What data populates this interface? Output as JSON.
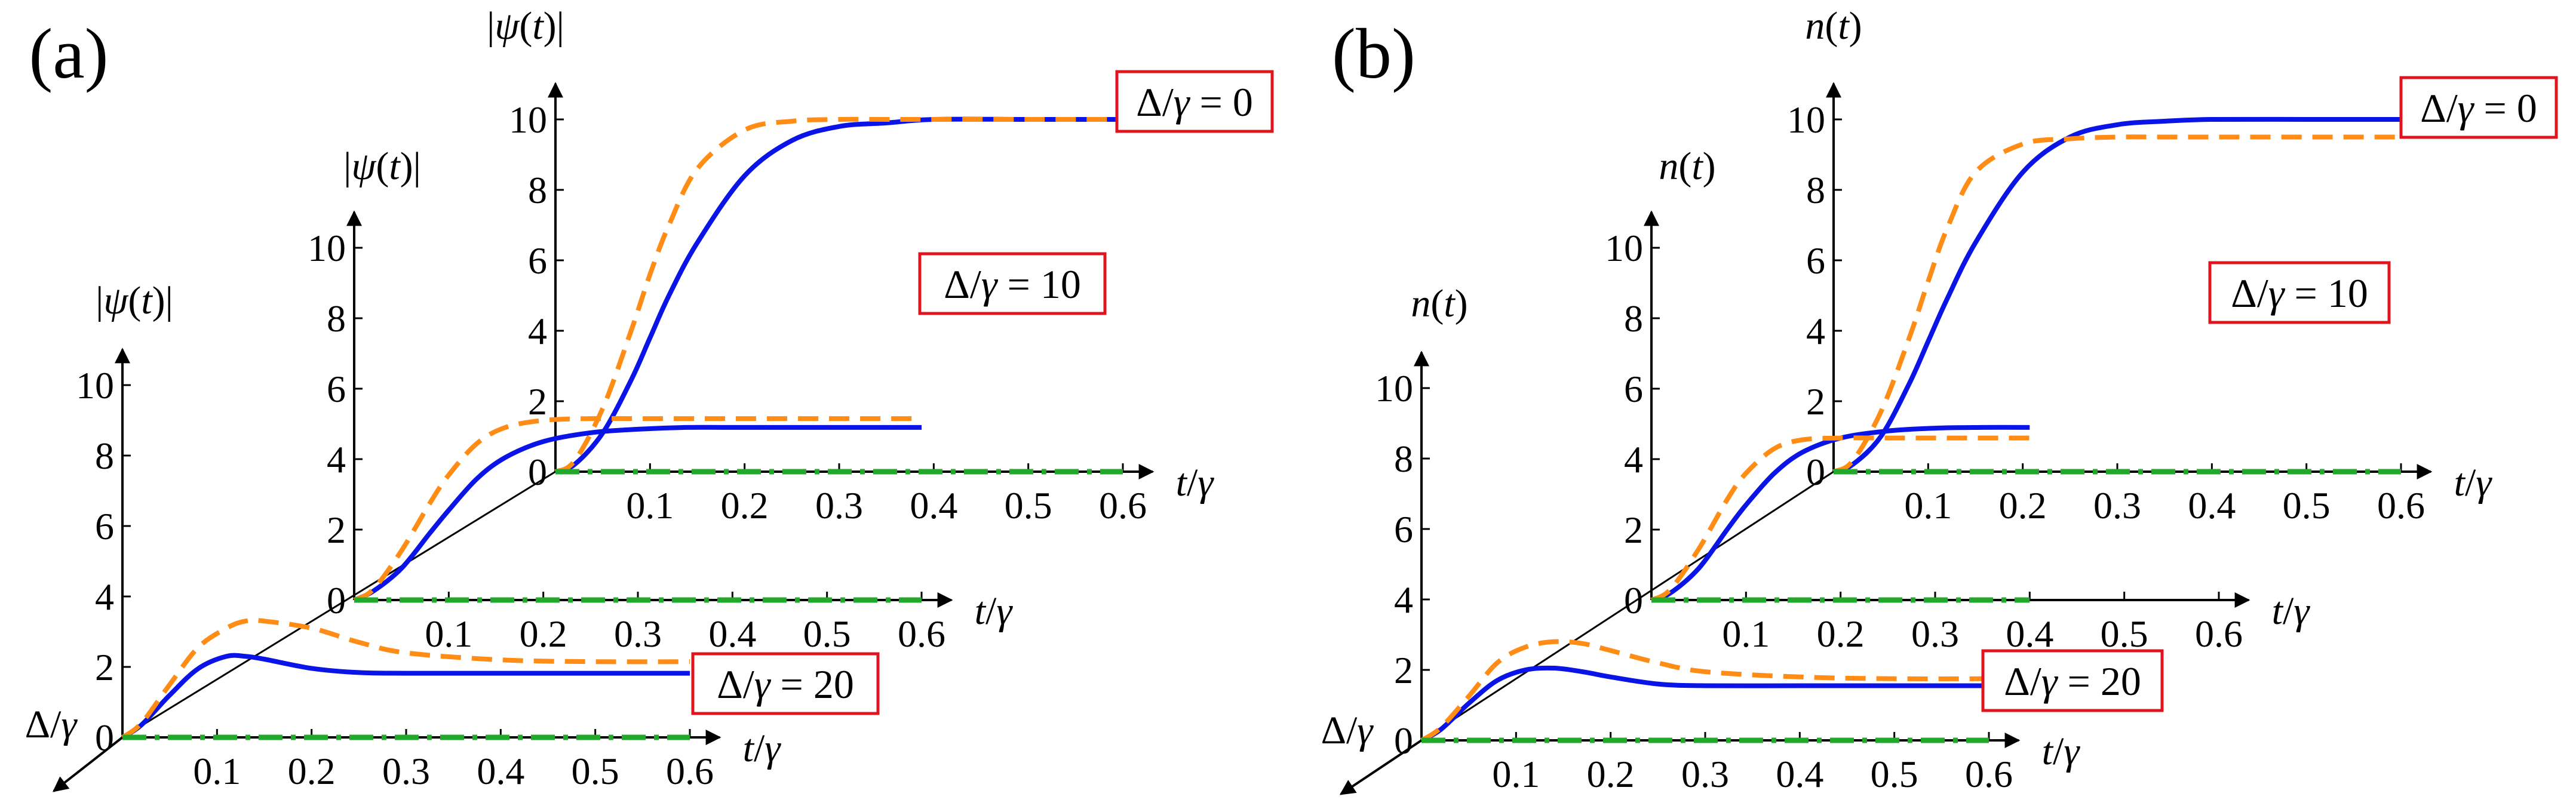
{
  "panels_text": [
    "(a)",
    "(b)"
  ],
  "ylabels": {
    "a": "|ψ(t)|",
    "b": "n(t)"
  },
  "xlabel": "t/γ",
  "depth_label": "Δ/γ",
  "colors": {
    "solid": "#0a14e6",
    "dashed": "#ff8c14",
    "dashdot": "#22a82a",
    "box": "#e0141e",
    "axis": "#000000"
  },
  "chart_data": [
    {
      "panel": "(a)",
      "type": "line",
      "title": "",
      "xlabel": "t/γ",
      "ylabel": "|ψ(t)|",
      "zlabel": "Δ/γ",
      "xlim": [
        0,
        0.6
      ],
      "ylim": [
        0,
        10
      ],
      "xticks": [
        "0.1",
        "0.2",
        "0.3",
        "0.4",
        "0.5",
        "0.6"
      ],
      "yticks": [
        "0",
        "2",
        "4",
        "6",
        "8",
        "10"
      ],
      "subplots": [
        {
          "label": "Δ/γ = 20",
          "x": [
            0,
            0.02,
            0.05,
            0.08,
            0.11,
            0.13,
            0.15,
            0.2,
            0.25,
            0.3,
            0.4,
            0.5,
            0.6
          ],
          "series": [
            {
              "name": "solid",
              "style": "solid",
              "values": [
                0,
                0.35,
                1.2,
                1.95,
                2.3,
                2.3,
                2.22,
                1.96,
                1.84,
                1.82,
                1.82,
                1.82,
                1.82
              ]
            },
            {
              "name": "dashed",
              "style": "dashed",
              "values": [
                0,
                0.4,
                1.5,
                2.55,
                3.1,
                3.3,
                3.3,
                3.1,
                2.7,
                2.4,
                2.2,
                2.15,
                2.15
              ]
            },
            {
              "name": "dash-dot",
              "style": "dashdot",
              "values": [
                0,
                0,
                0,
                0,
                0,
                0,
                0,
                0,
                0,
                0,
                0,
                0,
                0
              ]
            }
          ]
        },
        {
          "label": "Δ/γ = 10",
          "x": [
            0,
            0.02,
            0.05,
            0.08,
            0.1,
            0.13,
            0.16,
            0.2,
            0.25,
            0.3,
            0.35,
            0.4,
            0.5,
            0.6
          ],
          "series": [
            {
              "name": "solid",
              "style": "solid",
              "values": [
                0,
                0.25,
                0.9,
                1.9,
                2.55,
                3.45,
                4.05,
                4.5,
                4.75,
                4.85,
                4.9,
                4.9,
                4.9,
                4.9
              ]
            },
            {
              "name": "dashed",
              "style": "dashed",
              "values": [
                0,
                0.3,
                1.4,
                2.75,
                3.55,
                4.45,
                4.9,
                5.1,
                5.15,
                5.15,
                5.15,
                5.15,
                5.15,
                5.15
              ]
            },
            {
              "name": "dash-dot",
              "style": "dashdot",
              "values": [
                0,
                0,
                0,
                0,
                0,
                0,
                0,
                0,
                0,
                0,
                0,
                0,
                0,
                0
              ]
            }
          ]
        },
        {
          "label": "Δ/γ = 0",
          "x": [
            0,
            0.02,
            0.05,
            0.08,
            0.1,
            0.12,
            0.15,
            0.2,
            0.25,
            0.3,
            0.35,
            0.4,
            0.5,
            0.6
          ],
          "series": [
            {
              "name": "solid",
              "style": "solid",
              "values": [
                0,
                0.2,
                1.1,
                2.6,
                3.8,
                5.0,
                6.5,
                8.4,
                9.4,
                9.8,
                9.9,
                10,
                10,
                10
              ]
            },
            {
              "name": "dashed",
              "style": "dashed",
              "values": [
                0,
                0.3,
                1.8,
                4.0,
                5.6,
                7.0,
                8.6,
                9.7,
                9.95,
                10,
                10,
                10,
                10,
                10
              ]
            },
            {
              "name": "dash-dot",
              "style": "dashdot",
              "values": [
                0,
                0,
                0,
                0,
                0,
                0,
                0,
                0,
                0,
                0,
                0,
                0,
                0,
                0
              ]
            }
          ]
        }
      ]
    },
    {
      "panel": "(b)",
      "type": "line",
      "title": "",
      "xlabel": "t/γ",
      "ylabel": "n(t)",
      "zlabel": "Δ/γ",
      "xlim": [
        0,
        0.6
      ],
      "ylim": [
        0,
        10
      ],
      "xticks": [
        "0.1",
        "0.2",
        "0.3",
        "0.4",
        "0.5",
        "0.6"
      ],
      "yticks": [
        "0",
        "2",
        "4",
        "6",
        "8",
        "10"
      ],
      "subplots": [
        {
          "label": "Δ/γ = 20",
          "x": [
            0,
            0.02,
            0.05,
            0.08,
            0.11,
            0.14,
            0.17,
            0.2,
            0.25,
            0.3,
            0.4,
            0.5,
            0.6
          ],
          "series": [
            {
              "name": "solid",
              "style": "solid",
              "values": [
                0,
                0.3,
                1.05,
                1.7,
                2.0,
                2.05,
                1.95,
                1.8,
                1.6,
                1.55,
                1.55,
                1.55,
                1.55
              ]
            },
            {
              "name": "dashed",
              "style": "dashed",
              "values": [
                0,
                0.35,
                1.25,
                2.2,
                2.65,
                2.8,
                2.75,
                2.55,
                2.2,
                1.95,
                1.8,
                1.75,
                1.75
              ]
            },
            {
              "name": "dash-dot",
              "style": "dashdot",
              "values": [
                0,
                0,
                0,
                0,
                0,
                0,
                0,
                0,
                0,
                0,
                0,
                0,
                0
              ]
            }
          ]
        },
        {
          "label": "Δ/γ = 10",
          "x": [
            0,
            0.02,
            0.05,
            0.08,
            0.1,
            0.13,
            0.16,
            0.2,
            0.25,
            0.3,
            0.35,
            0.4
          ],
          "series": [
            {
              "name": "solid",
              "style": "solid",
              "values": [
                0,
                0.2,
                0.9,
                2.0,
                2.7,
                3.6,
                4.2,
                4.6,
                4.8,
                4.88,
                4.9,
                4.9
              ]
            },
            {
              "name": "dashed",
              "style": "dashed",
              "values": [
                0,
                0.3,
                1.45,
                2.85,
                3.6,
                4.3,
                4.55,
                4.6,
                4.6,
                4.6,
                4.6,
                4.6
              ]
            },
            {
              "name": "dash-dot",
              "style": "dashdot",
              "values": [
                0,
                0,
                0,
                0,
                0,
                0,
                0,
                0,
                0,
                0,
                0,
                0
              ]
            }
          ]
        },
        {
          "label": "Δ/γ = 0",
          "x": [
            0,
            0.02,
            0.05,
            0.08,
            0.1,
            0.12,
            0.15,
            0.2,
            0.25,
            0.3,
            0.35,
            0.4,
            0.5,
            0.6
          ],
          "series": [
            {
              "name": "solid",
              "style": "solid",
              "values": [
                0,
                0.2,
                1.0,
                2.5,
                3.7,
                4.9,
                6.5,
                8.5,
                9.5,
                9.85,
                9.95,
                10,
                10,
                10
              ]
            },
            {
              "name": "dashed",
              "style": "dashed",
              "values": [
                0,
                0.3,
                1.7,
                3.8,
                5.4,
                6.9,
                8.5,
                9.3,
                9.45,
                9.5,
                9.5,
                9.5,
                9.5,
                9.5
              ]
            },
            {
              "name": "dash-dot",
              "style": "dashdot",
              "values": [
                0,
                0,
                0,
                0,
                0,
                0,
                0,
                0,
                0,
                0,
                0,
                0,
                0,
                0
              ]
            }
          ]
        }
      ]
    }
  ]
}
